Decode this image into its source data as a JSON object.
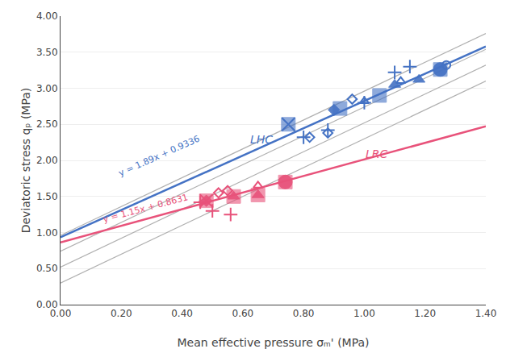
{
  "chart_data": {
    "type": "scatter",
    "x_label": "Mean effective pressure σₘ' (MPa)",
    "y_label": "Deviatoric stress qₚ (MPa)",
    "xlim": [
      0.0,
      1.4
    ],
    "ylim": [
      0.0,
      4.0
    ],
    "xticks": [
      {
        "value": 0.0,
        "label": "0.00"
      },
      {
        "value": 0.2,
        "label": "0.20"
      },
      {
        "value": 0.4,
        "label": "0.40"
      },
      {
        "value": 0.6,
        "label": "0.60"
      },
      {
        "value": 0.8,
        "label": "0.80"
      },
      {
        "value": 1.0,
        "label": "1.00"
      },
      {
        "value": 1.2,
        "label": "1.20"
      },
      {
        "value": 1.4,
        "label": "1.40"
      }
    ],
    "yticks": [
      {
        "value": 0.0,
        "label": "0.00"
      },
      {
        "value": 0.5,
        "label": "0.50"
      },
      {
        "value": 1.0,
        "label": "1.00"
      },
      {
        "value": 1.5,
        "label": "1.50"
      },
      {
        "value": 2.0,
        "label": "2.00"
      },
      {
        "value": 2.5,
        "label": "2.50"
      },
      {
        "value": 3.0,
        "label": "3.00"
      },
      {
        "value": 3.5,
        "label": "3.50"
      },
      {
        "value": 4.0,
        "label": "4.00"
      }
    ],
    "grid": "y",
    "legend": false,
    "series": [
      {
        "type": "line",
        "line_style": "solid",
        "color": "#b0b0b0",
        "x": [
          0.0,
          1.4
        ],
        "values": [
          0.3,
          3.1
        ]
      },
      {
        "type": "line",
        "line_style": "solid",
        "color": "#b0b0b0",
        "x": [
          0.0,
          1.4
        ],
        "values": [
          0.52,
          3.32
        ]
      },
      {
        "type": "line",
        "line_style": "solid",
        "color": "#b0b0b0",
        "x": [
          0.0,
          1.4
        ],
        "values": [
          0.74,
          3.54
        ]
      },
      {
        "type": "line",
        "line_style": "solid",
        "color": "#b0b0b0",
        "x": [
          0.0,
          1.4
        ],
        "values": [
          0.96,
          3.76
        ]
      },
      {
        "type": "line",
        "line_style": "solid",
        "color": "#4472C4",
        "x": [
          0.0,
          1.4
        ],
        "values": [
          0.9336,
          3.5796
        ]
      },
      {
        "type": "line",
        "line_style": "solid",
        "color": "#E8527A",
        "x": [
          0.0,
          1.4
        ],
        "values": [
          0.8631,
          2.4731
        ]
      },
      {
        "type": "scatter",
        "marker": "square",
        "color": "#4472C4",
        "x": [
          0.75,
          0.92,
          1.05,
          1.25
        ],
        "values": [
          2.5,
          2.72,
          2.9,
          3.26
        ]
      },
      {
        "type": "scatter",
        "marker": "circle",
        "color": "#4472C4",
        "x": [
          1.25
        ],
        "values": [
          3.26
        ]
      },
      {
        "type": "scatter",
        "marker": "triangle",
        "color": "#4472C4",
        "x": [
          1.1,
          1.18
        ],
        "values": [
          3.05,
          3.12
        ]
      },
      {
        "type": "scatter",
        "marker": "diamond",
        "color": "#4472C4",
        "x": [
          0.9
        ],
        "values": [
          2.7
        ]
      },
      {
        "type": "scatter",
        "marker": "open_diamond",
        "color": "#4472C4",
        "x": [
          0.82,
          0.88,
          0.96
        ],
        "values": [
          2.32,
          2.38,
          2.85
        ]
      },
      {
        "type": "scatter",
        "marker": "open_triangle",
        "color": "#4472C4",
        "x": [
          1.0,
          1.12
        ],
        "values": [
          2.82,
          3.1
        ]
      },
      {
        "type": "scatter",
        "marker": "open_circle",
        "color": "#4472C4",
        "x": [
          1.27
        ],
        "values": [
          3.32
        ]
      },
      {
        "type": "scatter",
        "marker": "plus",
        "color": "#4472C4",
        "x": [
          0.8,
          0.88,
          1.0,
          1.1,
          1.15
        ],
        "values": [
          2.32,
          2.42,
          2.8,
          3.22,
          3.3
        ]
      },
      {
        "type": "scatter",
        "marker": "x",
        "color": "#4472C4",
        "x": [
          0.75
        ],
        "values": [
          2.5
        ]
      },
      {
        "type": "scatter",
        "marker": "square",
        "color": "#E8527A",
        "x": [
          0.48,
          0.57,
          0.65,
          0.74
        ],
        "values": [
          1.44,
          1.5,
          1.52,
          1.7
        ]
      },
      {
        "type": "scatter",
        "marker": "circle",
        "color": "#E8527A",
        "x": [
          0.74
        ],
        "values": [
          1.7
        ]
      },
      {
        "type": "scatter",
        "marker": "triangle",
        "color": "#E8527A",
        "x": [
          0.57,
          0.65
        ],
        "values": [
          1.5,
          1.52
        ]
      },
      {
        "type": "scatter",
        "marker": "diamond",
        "color": "#E8527A",
        "x": [
          0.48
        ],
        "values": [
          1.44
        ]
      },
      {
        "type": "scatter",
        "marker": "open_diamond",
        "color": "#E8527A",
        "x": [
          0.52,
          0.55
        ],
        "values": [
          1.55,
          1.58
        ]
      },
      {
        "type": "scatter",
        "marker": "open_triangle",
        "color": "#E8527A",
        "x": [
          0.65
        ],
        "values": [
          1.65
        ]
      },
      {
        "type": "scatter",
        "marker": "plus",
        "color": "#E8527A",
        "x": [
          0.46,
          0.5,
          0.56
        ],
        "values": [
          1.42,
          1.3,
          1.25
        ]
      },
      {
        "type": "scatter",
        "marker": "x",
        "color": "#E8527A",
        "x": [
          0.48
        ],
        "values": [
          1.44
        ]
      }
    ],
    "annotations": [
      {
        "text": "LHC",
        "x": 0.62,
        "y": 2.18,
        "color": "#4472C4"
      },
      {
        "text": "LRC",
        "x": 1.0,
        "y": 1.98,
        "color": "#E8527A"
      },
      {
        "text": "y = 1.89x + 0.9336",
        "x": 0.18,
        "y": 1.72,
        "color": "#4472C4"
      },
      {
        "text": "y = 1.15x + 0.8631",
        "x": 0.13,
        "y": 1.08,
        "color": "#E8527A"
      }
    ]
  }
}
